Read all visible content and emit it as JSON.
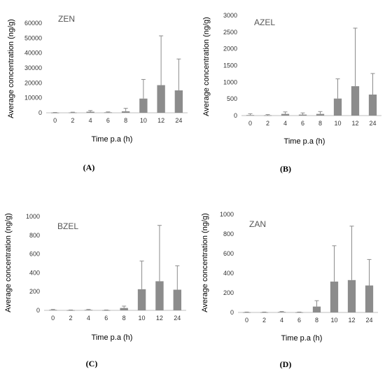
{
  "colors": {
    "bar": "#8c8c8c",
    "axis": "#bfbfbf",
    "error_bar": "#8c8c8c"
  },
  "chart_data": [
    {
      "type": "bar",
      "title": "ZEN",
      "panel_label": "(A)",
      "xlabel": "Time p.a (h)",
      "ylabel": "Average concentration (ng/g)",
      "categories": [
        "0",
        "2",
        "4",
        "6",
        "8",
        "10",
        "12",
        "24"
      ],
      "values": [
        100,
        200,
        700,
        300,
        1000,
        9500,
        18500,
        15000
      ],
      "errors": [
        100,
        200,
        800,
        300,
        2000,
        12800,
        33000,
        21000
      ],
      "ylim": [
        0,
        60000
      ],
      "yticks": [
        "0",
        "10000",
        "20000",
        "30000",
        "40000",
        "50000",
        "60000"
      ],
      "grid": false
    },
    {
      "type": "bar",
      "title": "AZEL",
      "panel_label": "(B)",
      "xlabel": "Time p.a (h)",
      "ylabel": "Average concentration (ng/g)",
      "categories": [
        "0",
        "2",
        "4",
        "6",
        "8",
        "10",
        "12",
        "24"
      ],
      "values": [
        15,
        10,
        50,
        30,
        50,
        510,
        880,
        630
      ],
      "errors": [
        40,
        20,
        60,
        50,
        70,
        590,
        1740,
        630
      ],
      "ylim": [
        0,
        3000
      ],
      "yticks": [
        "0",
        "500",
        "1000",
        "1500",
        "2000",
        "2500",
        "3000"
      ],
      "grid": false
    },
    {
      "type": "bar",
      "title": "BZEL",
      "panel_label": "(C)",
      "xlabel": "Time p.a (h)",
      "ylabel": "Average concentration (ng/g)",
      "categories": [
        "0",
        "2",
        "4",
        "6",
        "8",
        "10",
        "12",
        "24"
      ],
      "values": [
        5,
        2,
        5,
        2,
        25,
        225,
        310,
        220
      ],
      "errors": [
        5,
        2,
        5,
        2,
        20,
        300,
        595,
        255
      ],
      "ylim": [
        0,
        1000
      ],
      "yticks": [
        "0",
        "200",
        "400",
        "600",
        "800",
        "1000"
      ],
      "grid": false
    },
    {
      "type": "bar",
      "title": "ZAN",
      "panel_label": "(D)",
      "xlabel": "Time p.a (h)",
      "ylabel": "Average concentration (ng/g)",
      "categories": [
        "0",
        "2",
        "4",
        "6",
        "8",
        "10",
        "12",
        "24"
      ],
      "values": [
        2,
        2,
        5,
        2,
        60,
        315,
        330,
        275
      ],
      "errors": [
        2,
        2,
        5,
        2,
        60,
        365,
        550,
        265
      ],
      "ylim": [
        0,
        1000
      ],
      "yticks": [
        "0",
        "200",
        "400",
        "600",
        "800",
        "1000"
      ],
      "grid": false
    }
  ]
}
